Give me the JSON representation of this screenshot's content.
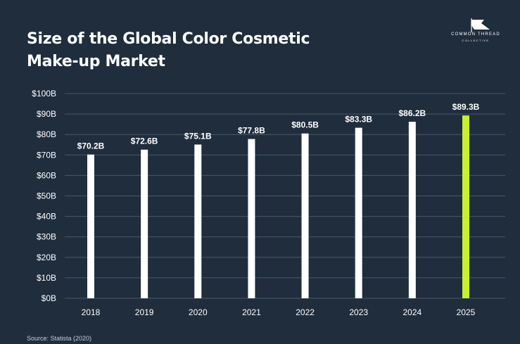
{
  "header": {
    "title_line1": "Size of the Global Color Cosmetic",
    "title_line2": "Make-up Market"
  },
  "brand": {
    "logo_text": "COMMON THREAD",
    "logo_subtext": "COLLECTIVE"
  },
  "source": "Source: Statista (2020)",
  "colors": {
    "background": "#1f2d3d",
    "bar": "#ffffff",
    "highlight": "#c8f031",
    "grid": "#4a5868"
  },
  "chart_data": {
    "type": "bar",
    "categories": [
      "2018",
      "2019",
      "2020",
      "2021",
      "2022",
      "2023",
      "2024",
      "2025"
    ],
    "values": [
      70.2,
      72.6,
      75.1,
      77.8,
      80.5,
      83.3,
      86.2,
      89.3
    ],
    "data_labels": [
      "$70.2B",
      "$72.6B",
      "$75.1B",
      "$77.8B",
      "$80.5B",
      "$83.3B",
      "$86.2B",
      "$89.3B"
    ],
    "highlight_category": "2025",
    "title": "Size of the Global Color Cosmetic Make-up Market",
    "xlabel": "",
    "ylabel": "",
    "ylim": [
      0,
      100
    ],
    "yticks": [
      0,
      10,
      20,
      30,
      40,
      50,
      60,
      70,
      80,
      90,
      100
    ],
    "ytick_labels": [
      "$0B",
      "$10B",
      "$20B",
      "$30B",
      "$40B",
      "$50B",
      "$60B",
      "$70B",
      "$80B",
      "$90B",
      "$100B"
    ],
    "grid": true,
    "legend": "none"
  }
}
